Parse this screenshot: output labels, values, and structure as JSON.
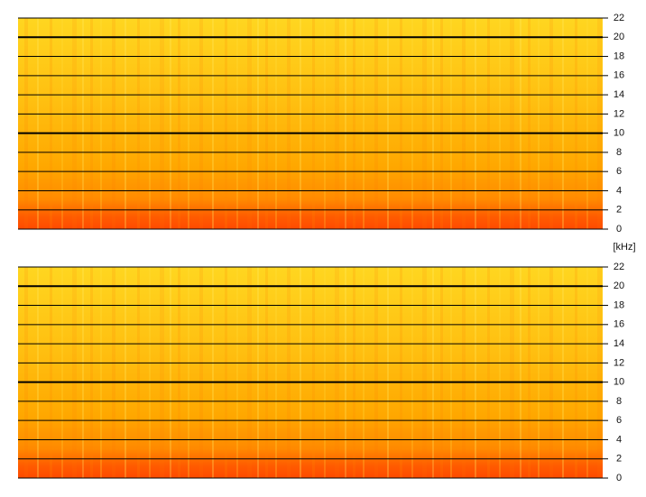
{
  "chart_data": [
    {
      "type": "spectrogram",
      "ylabel": "[kHz]",
      "ylim": [
        0,
        22
      ],
      "yticks": [
        0,
        2,
        4,
        6,
        8,
        10,
        12,
        14,
        16,
        18,
        20,
        22
      ],
      "grid": true
    },
    {
      "type": "spectrogram",
      "ylim": [
        0,
        22
      ],
      "yticks": [
        0,
        2,
        4,
        6,
        8,
        10,
        12,
        14,
        16,
        18,
        20,
        22
      ],
      "grid": true
    }
  ]
}
